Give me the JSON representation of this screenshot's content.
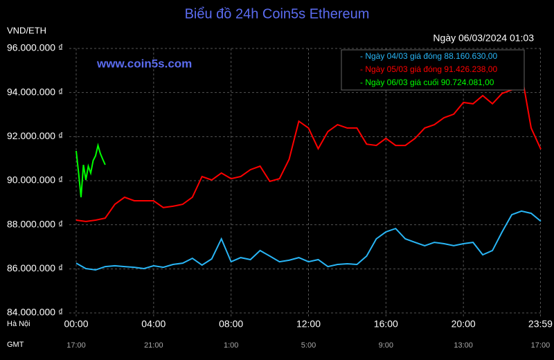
{
  "chart_data": {
    "type": "line",
    "title": "Biểu đồ 24h Coin5s Ethereum",
    "y_label": "VND/ETH",
    "subtitle": "Ngày 06/03/2024 01:03",
    "annotation": "www.coin5s.com",
    "x_row_label": "Hà Nội",
    "x2_row_label": "GMT",
    "xlim": [
      0,
      24
    ],
    "xticks": [
      {
        "value": 0,
        "label": "00:00"
      },
      {
        "value": 4,
        "label": "04:00"
      },
      {
        "value": 8,
        "label": "08:00"
      },
      {
        "value": 12,
        "label": "12:00"
      },
      {
        "value": 16,
        "label": "16:00"
      },
      {
        "value": 20,
        "label": "20:00"
      },
      {
        "value": 23.98,
        "label": "23:59"
      }
    ],
    "x2tick_labels": [
      "17:00",
      "21:00",
      "1:00",
      "5:00",
      "9:00",
      "13:00",
      "17:00"
    ],
    "ylim": [
      84000000,
      96000000
    ],
    "yticks": [
      {
        "value": 84000000,
        "label": "84.000.000 ₫"
      },
      {
        "value": 86000000,
        "label": "86.000.000 ₫"
      },
      {
        "value": 88000000,
        "label": "88.000.000 ₫"
      },
      {
        "value": 90000000,
        "label": "90.000.000 ₫"
      },
      {
        "value": 92000000,
        "label": "92.000.000 ₫"
      },
      {
        "value": 94000000,
        "label": "94.000.000 ₫"
      },
      {
        "value": 96000000,
        "label": "96.000.000 ₫"
      }
    ],
    "grid": true,
    "legend": "top-right",
    "series": [
      {
        "name": "- Ngày 04/03 giá đóng 88.160.630,00",
        "color": "#29b6f6",
        "x": [
          0,
          0.5,
          1,
          1.5,
          2,
          2.5,
          3,
          3.5,
          4,
          4.5,
          5,
          5.5,
          6,
          6.5,
          7,
          7.5,
          8,
          8.5,
          9,
          9.5,
          10,
          10.5,
          11,
          11.5,
          12,
          12.5,
          13,
          13.5,
          14,
          14.5,
          15,
          15.5,
          16,
          16.5,
          17,
          17.5,
          18,
          18.5,
          19,
          19.5,
          20,
          20.5,
          21,
          21.5,
          22,
          22.5,
          23,
          23.5,
          24
        ],
        "values": [
          86260000,
          86010000,
          85950000,
          86100000,
          86140000,
          86100000,
          86070000,
          86010000,
          86140000,
          86070000,
          86200000,
          86260000,
          86480000,
          86170000,
          86450000,
          87360000,
          86320000,
          86510000,
          86420000,
          86830000,
          86580000,
          86320000,
          86390000,
          86510000,
          86320000,
          86420000,
          86100000,
          86200000,
          86230000,
          86200000,
          86580000,
          87360000,
          87680000,
          87830000,
          87360000,
          87200000,
          87050000,
          87200000,
          87140000,
          87050000,
          87140000,
          87200000,
          86640000,
          86830000,
          87680000,
          88460000,
          88620000,
          88520000,
          88160630
        ]
      },
      {
        "name": "- Ngày 05/03 giá đóng 91.426.238,00",
        "color": "#ff0000",
        "x": [
          0,
          0.5,
          1,
          1.5,
          2,
          2.5,
          3,
          3.5,
          4,
          4.5,
          5,
          5.5,
          6,
          6.5,
          7,
          7.5,
          8,
          8.5,
          9,
          9.5,
          10,
          10.5,
          11,
          11.5,
          12,
          12.5,
          13,
          13.5,
          14,
          14.5,
          15,
          15.5,
          16,
          16.5,
          17,
          17.5,
          18,
          18.5,
          19,
          19.5,
          20,
          20.5,
          21,
          21.5,
          22,
          22.5,
          23,
          23.5,
          24
        ],
        "values": [
          88210000,
          88150000,
          88210000,
          88300000,
          88930000,
          89250000,
          89090000,
          89090000,
          89090000,
          88780000,
          88840000,
          88930000,
          89250000,
          90190000,
          90030000,
          90350000,
          90090000,
          90190000,
          90500000,
          90660000,
          89970000,
          90090000,
          90970000,
          92700000,
          92390000,
          91450000,
          92230000,
          92540000,
          92390000,
          92390000,
          91660000,
          91600000,
          91920000,
          91600000,
          91600000,
          91920000,
          92390000,
          92540000,
          92860000,
          93020000,
          93550000,
          93490000,
          93860000,
          93490000,
          93960000,
          94120000,
          94900000,
          92390000,
          91426238
        ]
      },
      {
        "name": "- Ngày 06/03 giá cuối 90.724.081,00",
        "color": "#00ff00",
        "x": [
          0,
          0.125,
          0.25,
          0.375,
          0.5,
          0.625,
          0.75,
          0.875,
          1,
          1.125,
          1.25,
          1.375,
          1.5
        ],
        "values": [
          91350000,
          90350000,
          89250000,
          90720000,
          90030000,
          90660000,
          90350000,
          90910000,
          91130000,
          91600000,
          91230000,
          90970000,
          90724081
        ]
      }
    ]
  }
}
